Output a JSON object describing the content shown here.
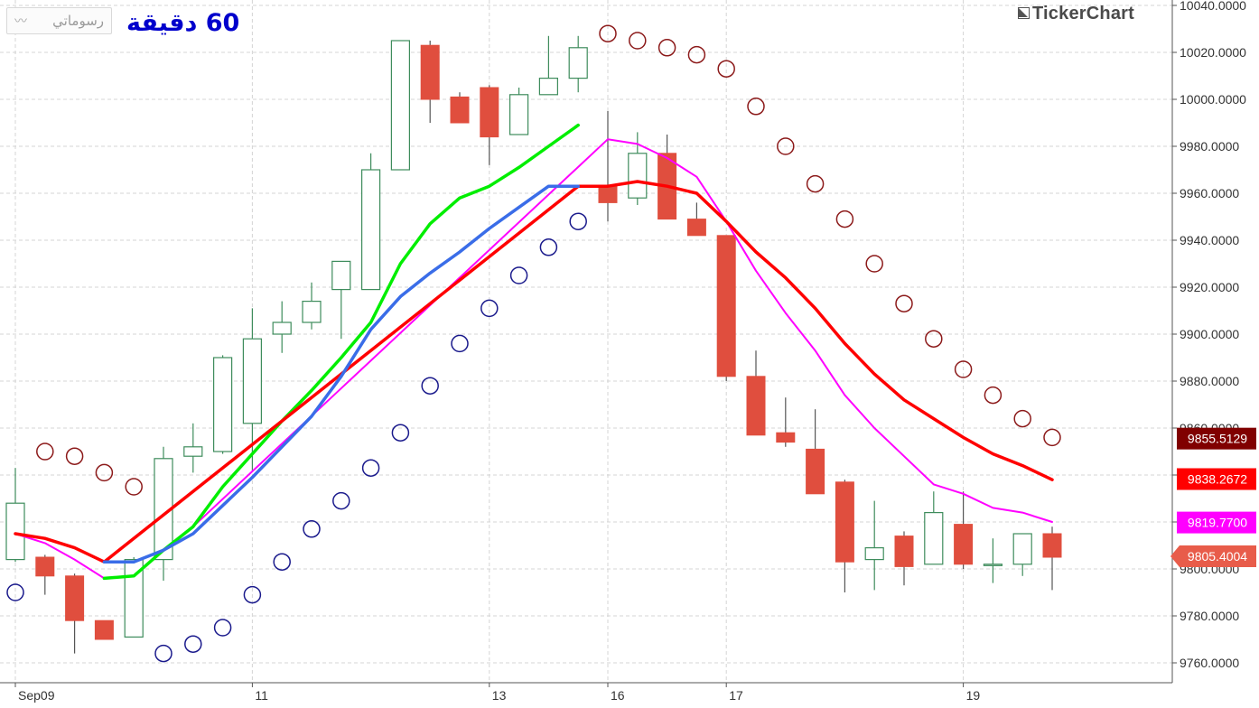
{
  "toolbar": {
    "drawings_button_label": "رسوماتي",
    "drawings_button_icon": "trendline-icon",
    "interval_title": "60 دقيقة",
    "brand": "TickerChart"
  },
  "chart_data": {
    "type": "candlestick",
    "y_axis_range": [
      9755,
      10040
    ],
    "y_ticks": [
      "9760.0000",
      "9780.0000",
      "9800.0000",
      "9820.0000",
      "9840.0000",
      "9860.0000",
      "9880.0000",
      "9900.0000",
      "9920.0000",
      "9940.0000",
      "9960.0000",
      "9980.0000",
      "10000.0000",
      "10020.0000",
      "10040.0000"
    ],
    "y_tick_values": [
      9760,
      9780,
      9800,
      9820,
      9840,
      9860,
      9880,
      9900,
      9920,
      9940,
      9960,
      9980,
      10000,
      10020,
      10040
    ],
    "x_labels": [
      {
        "label": "Sep09",
        "index": 0
      },
      {
        "label": "11",
        "index": 8
      },
      {
        "label": "13",
        "index": 16
      },
      {
        "label": "16",
        "index": 20
      },
      {
        "label": "17",
        "index": 24
      },
      {
        "label": "19",
        "index": 32
      }
    ],
    "candles": [
      {
        "o": 9804,
        "h": 9843,
        "l": 9803,
        "c": 9828
      },
      {
        "o": 9805,
        "h": 9806,
        "l": 9789,
        "c": 9797
      },
      {
        "o": 9797,
        "h": 9798,
        "l": 9764,
        "c": 9778
      },
      {
        "o": 9778,
        "h": 9778,
        "l": 9770,
        "c": 9770
      },
      {
        "o": 9771,
        "h": 9805,
        "l": 9771,
        "c": 9804
      },
      {
        "o": 9804,
        "h": 9852,
        "l": 9795,
        "c": 9847
      },
      {
        "o": 9848,
        "h": 9862,
        "l": 9841,
        "c": 9852
      },
      {
        "o": 9850,
        "h": 9891,
        "l": 9849,
        "c": 9890
      },
      {
        "o": 9862,
        "h": 9911,
        "l": 9842,
        "c": 9898
      },
      {
        "o": 9900,
        "h": 9914,
        "l": 9892,
        "c": 9905
      },
      {
        "o": 9905,
        "h": 9922,
        "l": 9902,
        "c": 9914
      },
      {
        "o": 9919,
        "h": 9931,
        "l": 9898,
        "c": 9931
      },
      {
        "o": 9919,
        "h": 9977,
        "l": 9919,
        "c": 9970
      },
      {
        "o": 9970,
        "h": 10025,
        "l": 9970,
        "c": 10025
      },
      {
        "o": 10023,
        "h": 10025,
        "l": 9990,
        "c": 10000
      },
      {
        "o": 10001,
        "h": 10003,
        "l": 9990,
        "c": 9990
      },
      {
        "o": 10005,
        "h": 10006,
        "l": 9972,
        "c": 9984
      },
      {
        "o": 9985,
        "h": 10005,
        "l": 9985,
        "c": 10002
      },
      {
        "o": 10002,
        "h": 10027,
        "l": 10002,
        "c": 10009
      },
      {
        "o": 10009,
        "h": 10027,
        "l": 10003,
        "c": 10022
      },
      {
        "o": 9963,
        "h": 9995,
        "l": 9948,
        "c": 9956
      },
      {
        "o": 9958,
        "h": 9986,
        "l": 9955,
        "c": 9977
      },
      {
        "o": 9977,
        "h": 9985,
        "l": 9949,
        "c": 9949
      },
      {
        "o": 9949,
        "h": 9956,
        "l": 9942,
        "c": 9942
      },
      {
        "o": 9942,
        "h": 9942,
        "l": 9880,
        "c": 9882
      },
      {
        "o": 9882,
        "h": 9893,
        "l": 9857,
        "c": 9857
      },
      {
        "o": 9858,
        "h": 9873,
        "l": 9852,
        "c": 9854
      },
      {
        "o": 9851,
        "h": 9868,
        "l": 9832,
        "c": 9832
      },
      {
        "o": 9837,
        "h": 9838,
        "l": 9790,
        "c": 9803
      },
      {
        "o": 9804,
        "h": 9829,
        "l": 9791,
        "c": 9809
      },
      {
        "o": 9814,
        "h": 9816,
        "l": 9793,
        "c": 9801
      },
      {
        "o": 9802,
        "h": 9833,
        "l": 9802,
        "c": 9824
      },
      {
        "o": 9819,
        "h": 9833,
        "l": 9800,
        "c": 9802
      },
      {
        "o": 9802,
        "h": 9813,
        "l": 9794,
        "c": 9802
      },
      {
        "o": 9802,
        "h": 9815,
        "l": 9797,
        "c": 9815
      },
      {
        "o": 9815,
        "h": 9818,
        "l": 9791,
        "c": 9805
      }
    ],
    "sar_below": [
      [
        0,
        9790
      ],
      [
        5,
        9764
      ],
      [
        6,
        9768
      ],
      [
        7,
        9775
      ],
      [
        8,
        9789
      ],
      [
        9,
        9803
      ],
      [
        10,
        9817
      ],
      [
        11,
        9829
      ],
      [
        12,
        9843
      ],
      [
        13,
        9858
      ],
      [
        14,
        9878
      ],
      [
        15,
        9896
      ],
      [
        16,
        9911
      ],
      [
        17,
        9925
      ],
      [
        18,
        9937
      ],
      [
        19,
        9948
      ]
    ],
    "sar_above": [
      [
        1,
        9850
      ],
      [
        2,
        9848
      ],
      [
        3,
        9841
      ],
      [
        4,
        9835
      ],
      [
        20,
        10028
      ],
      [
        21,
        10025
      ],
      [
        22,
        10022
      ],
      [
        23,
        10019
      ],
      [
        24,
        10013
      ],
      [
        25,
        9997
      ],
      [
        26,
        9980
      ],
      [
        27,
        9964
      ],
      [
        28,
        9949
      ],
      [
        29,
        9930
      ],
      [
        30,
        9913
      ],
      [
        31,
        9898
      ],
      [
        32,
        9885
      ],
      [
        33,
        9874
      ],
      [
        34,
        9864
      ],
      [
        35,
        9856
      ]
    ],
    "series": [
      {
        "name": "",
        "color": "#ff00ff",
        "points": [
          [
            0,
            9815
          ],
          [
            1,
            9811
          ],
          [
            2,
            9804
          ],
          [
            3,
            9796
          ],
          [
            4,
            9797
          ],
          [
            5,
            9808
          ],
          [
            6,
            9818
          ],
          [
            20,
            9983
          ],
          [
            21,
            9981
          ],
          [
            22,
            9975
          ],
          [
            23,
            9967
          ],
          [
            24,
            9948
          ],
          [
            25,
            9927
          ],
          [
            26,
            9909
          ],
          [
            27,
            9893
          ],
          [
            28,
            9874
          ],
          [
            29,
            9860
          ],
          [
            30,
            9848
          ],
          [
            31,
            9836
          ],
          [
            32,
            9832
          ],
          [
            33,
            9826
          ],
          [
            34,
            9824
          ],
          [
            35,
            9820
          ]
        ]
      },
      {
        "name": "",
        "color": "#00ee00",
        "points": [
          [
            3,
            9796
          ],
          [
            4,
            9797
          ],
          [
            5,
            9808
          ],
          [
            6,
            9818
          ],
          [
            7,
            9835
          ],
          [
            8,
            9849
          ],
          [
            9,
            9863
          ],
          [
            10,
            9876
          ],
          [
            11,
            9890
          ],
          [
            12,
            9905
          ],
          [
            13,
            9930
          ],
          [
            14,
            9947
          ],
          [
            15,
            9958
          ],
          [
            16,
            9963
          ],
          [
            17,
            9971
          ],
          [
            18,
            9980
          ],
          [
            19,
            9989
          ]
        ]
      },
      {
        "name": "",
        "color": "#ff0000",
        "points": [
          [
            0,
            9815
          ],
          [
            1,
            9813
          ],
          [
            2,
            9809
          ],
          [
            3,
            9803
          ],
          [
            19,
            9963
          ],
          [
            20,
            9963
          ],
          [
            21,
            9965
          ],
          [
            22,
            9963
          ],
          [
            23,
            9960
          ],
          [
            24,
            9948
          ],
          [
            25,
            9935
          ],
          [
            26,
            9924
          ],
          [
            27,
            9911
          ],
          [
            28,
            9896
          ],
          [
            29,
            9883
          ],
          [
            30,
            9872
          ],
          [
            31,
            9864
          ],
          [
            32,
            9856
          ],
          [
            33,
            9849
          ],
          [
            34,
            9844
          ],
          [
            35,
            9838
          ]
        ]
      },
      {
        "name": "",
        "color": "#3a6de8",
        "points": [
          [
            3,
            9803
          ],
          [
            4,
            9803
          ],
          [
            5,
            9808
          ],
          [
            6,
            9815
          ],
          [
            7,
            9827
          ],
          [
            8,
            9839
          ],
          [
            9,
            9852
          ],
          [
            10,
            9865
          ],
          [
            11,
            9882
          ],
          [
            12,
            9902
          ],
          [
            13,
            9916
          ],
          [
            14,
            9926
          ],
          [
            15,
            9935
          ],
          [
            16,
            9945
          ],
          [
            17,
            9954
          ],
          [
            18,
            9963
          ],
          [
            19,
            9963
          ]
        ]
      }
    ],
    "value_tags": [
      {
        "text": "9855.5129",
        "value": 9855.5129,
        "color": "#800000"
      },
      {
        "text": "9838.2672",
        "value": 9838.2672,
        "color": "#ff0000"
      },
      {
        "text": "9819.7700",
        "value": 9819.77,
        "color": "#ff00ff"
      },
      {
        "text": "9805.4004",
        "value": 9805.4004,
        "color": "#e85c4a"
      }
    ],
    "colors": {
      "up_candle_border": "#3e8c5c",
      "down_candle_fill": "#e04e3e",
      "sar_below": "#1a1a8c",
      "sar_above": "#8c1a1a",
      "grid": "#d4d4d4",
      "axis_text": "#333333"
    },
    "grid": true
  }
}
